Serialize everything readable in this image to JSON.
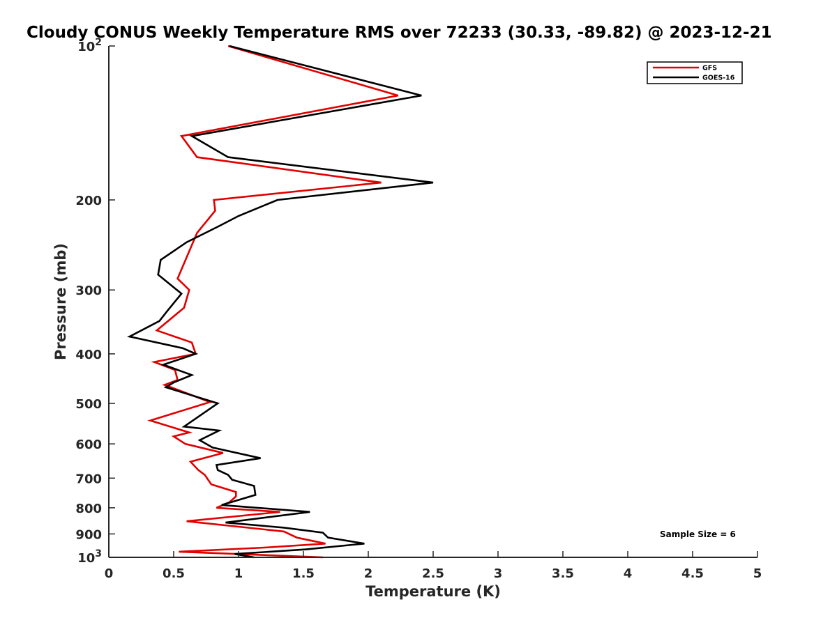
{
  "chart_data": {
    "type": "line",
    "title": "Cloudy CONUS Weekly Temperature RMS over 72233 (30.33, -89.82) @ 2023-12-21",
    "xlabel": "Temperature (K)",
    "ylabel": "Pressure (mb)",
    "xlim": [
      0,
      5
    ],
    "ylim": [
      100,
      1000
    ],
    "y_scale": "log",
    "y_reversed": true,
    "x_ticks": [
      "0",
      "0.5",
      "1",
      "1.5",
      "2",
      "2.5",
      "3",
      "3.5",
      "4",
      "4.5",
      "5"
    ],
    "y_ticks": [
      {
        "value": 100,
        "base": "10",
        "exp": "2"
      },
      {
        "value": 200,
        "label": "200"
      },
      {
        "value": 300,
        "label": "300"
      },
      {
        "value": 400,
        "label": "400"
      },
      {
        "value": 500,
        "label": "500"
      },
      {
        "value": 600,
        "label": "600"
      },
      {
        "value": 700,
        "label": "700"
      },
      {
        "value": 800,
        "label": "800"
      },
      {
        "value": 900,
        "label": "900"
      },
      {
        "value": 1000,
        "base": "10",
        "exp": "3"
      }
    ],
    "grid": false,
    "legend_position": "top-right",
    "annotation": "Sample Size = 6",
    "series": [
      {
        "name": "GFS",
        "color": "#e00000",
        "points": [
          [
            0.92,
            100
          ],
          [
            2.23,
            125
          ],
          [
            0.56,
            150
          ],
          [
            0.68,
            165
          ],
          [
            2.1,
            185
          ],
          [
            0.81,
            200
          ],
          [
            0.82,
            210
          ],
          [
            0.68,
            232
          ],
          [
            0.53,
            285
          ],
          [
            0.62,
            300
          ],
          [
            0.58,
            325
          ],
          [
            0.37,
            360
          ],
          [
            0.64,
            380
          ],
          [
            0.67,
            400
          ],
          [
            0.35,
            415
          ],
          [
            0.51,
            430
          ],
          [
            0.53,
            450
          ],
          [
            0.43,
            460
          ],
          [
            0.78,
            497
          ],
          [
            0.32,
            540
          ],
          [
            0.62,
            570
          ],
          [
            0.5,
            580
          ],
          [
            0.59,
            600
          ],
          [
            0.88,
            625
          ],
          [
            0.63,
            650
          ],
          [
            0.69,
            675
          ],
          [
            0.74,
            690
          ],
          [
            0.79,
            720
          ],
          [
            0.98,
            745
          ],
          [
            0.98,
            760
          ],
          [
            0.93,
            780
          ],
          [
            0.83,
            800
          ],
          [
            1.32,
            815
          ],
          [
            0.6,
            850
          ],
          [
            1.35,
            890
          ],
          [
            1.45,
            915
          ],
          [
            1.67,
            940
          ],
          [
            1.2,
            957
          ],
          [
            0.54,
            975
          ],
          [
            1.65,
            1000
          ]
        ]
      },
      {
        "name": "GOES-16",
        "color": "#000000",
        "points": [
          [
            0.93,
            100
          ],
          [
            2.41,
            125
          ],
          [
            0.64,
            150
          ],
          [
            0.92,
            165
          ],
          [
            2.5,
            185
          ],
          [
            1.3,
            200
          ],
          [
            1.0,
            215
          ],
          [
            0.85,
            225
          ],
          [
            0.6,
            242
          ],
          [
            0.4,
            262
          ],
          [
            0.38,
            280
          ],
          [
            0.56,
            305
          ],
          [
            0.45,
            330
          ],
          [
            0.39,
            345
          ],
          [
            0.16,
            370
          ],
          [
            0.57,
            390
          ],
          [
            0.67,
            400
          ],
          [
            0.42,
            420
          ],
          [
            0.64,
            440
          ],
          [
            0.5,
            455
          ],
          [
            0.44,
            465
          ],
          [
            0.84,
            500
          ],
          [
            0.58,
            555
          ],
          [
            0.85,
            565
          ],
          [
            0.7,
            590
          ],
          [
            0.8,
            610
          ],
          [
            1.17,
            640
          ],
          [
            0.83,
            660
          ],
          [
            0.84,
            675
          ],
          [
            0.92,
            690
          ],
          [
            0.95,
            705
          ],
          [
            1.12,
            725
          ],
          [
            1.13,
            755
          ],
          [
            0.87,
            790
          ],
          [
            1.55,
            815
          ],
          [
            0.9,
            855
          ],
          [
            1.35,
            875
          ],
          [
            1.65,
            895
          ],
          [
            1.69,
            915
          ],
          [
            1.97,
            940
          ],
          [
            1.52,
            965
          ],
          [
            0.97,
            985
          ],
          [
            1.12,
            1000
          ]
        ]
      }
    ]
  }
}
